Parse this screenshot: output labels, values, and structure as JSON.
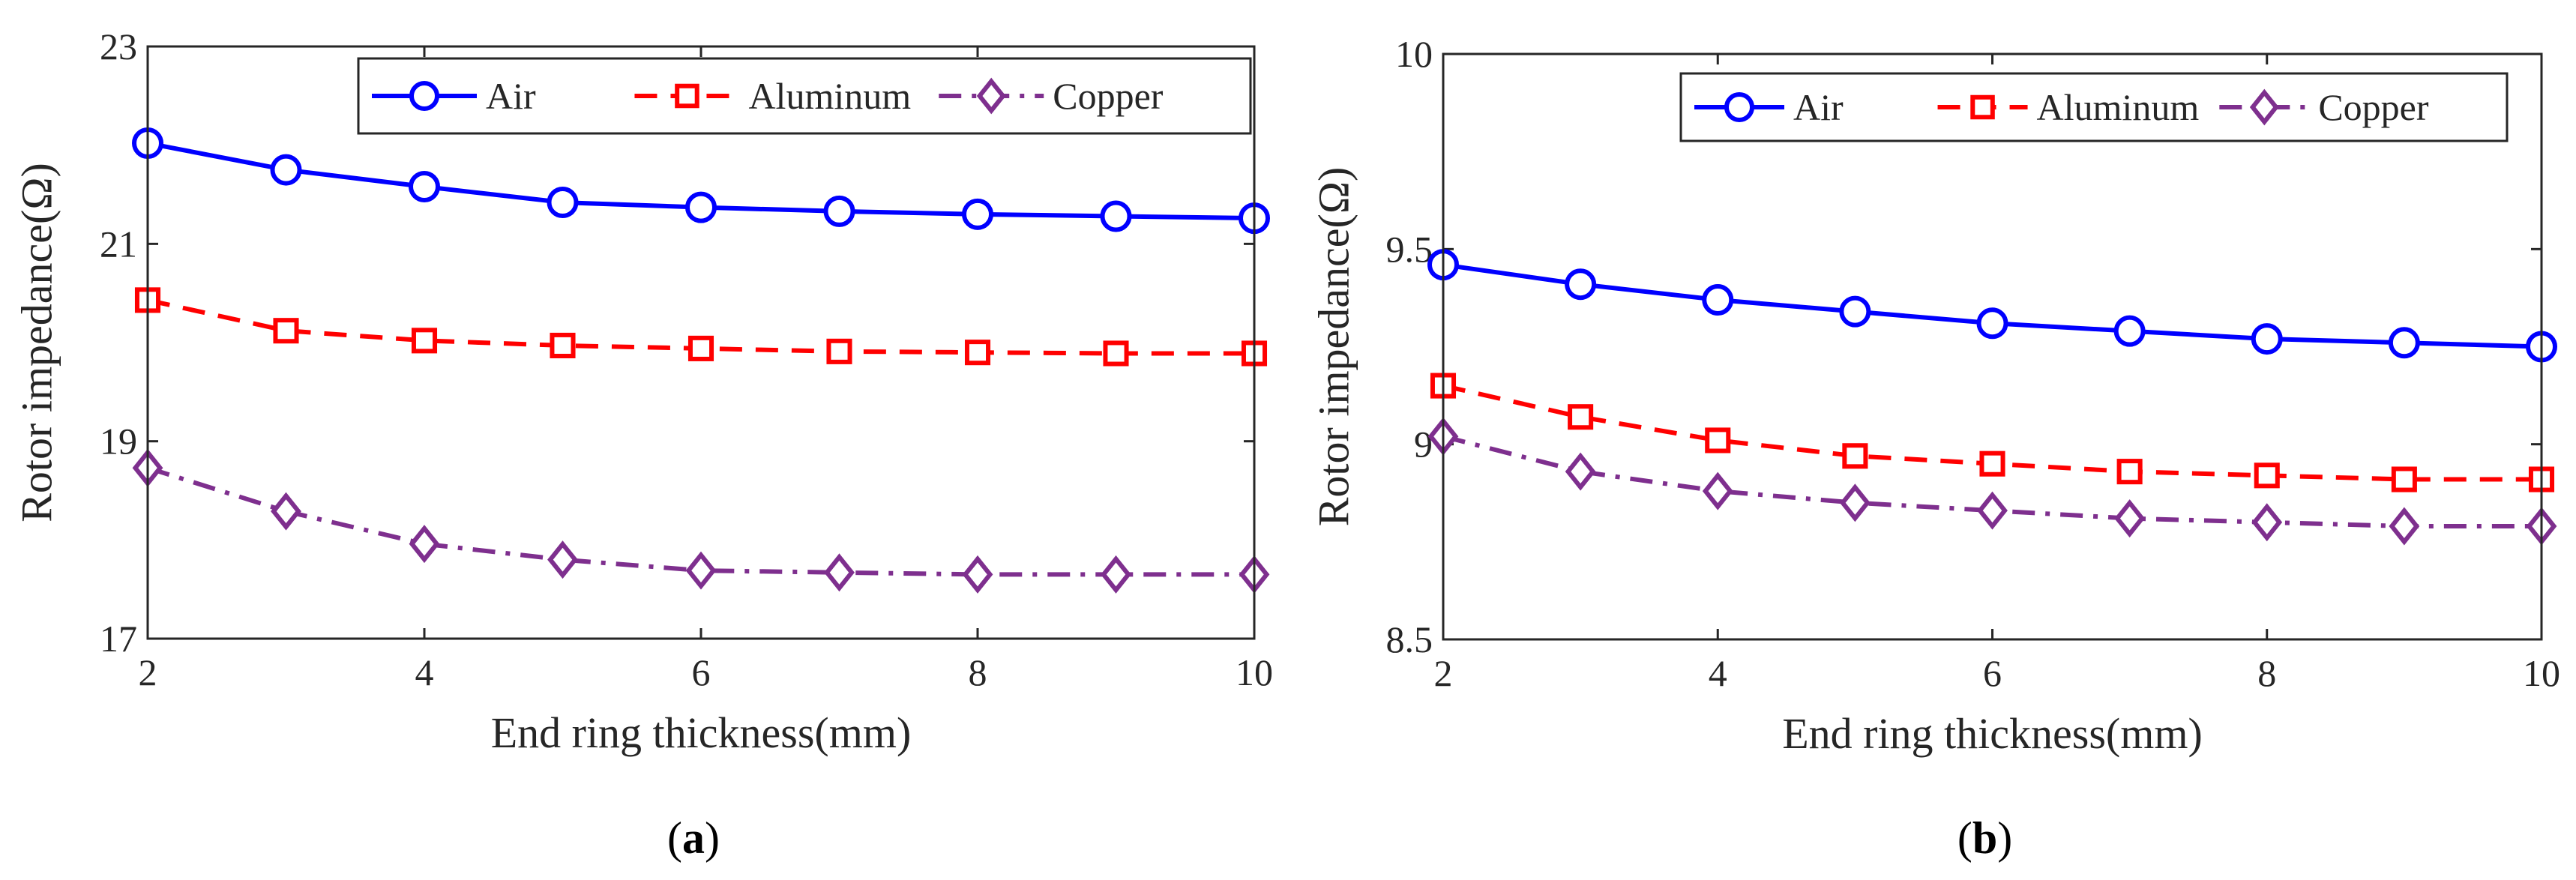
{
  "chart_data": [
    {
      "type": "line",
      "panel_label": "a",
      "xlabel": "End ring thickness(mm)",
      "ylabel": "Rotor impedance(Ω)",
      "xlim": [
        2,
        10
      ],
      "ylim": [
        17,
        23
      ],
      "xticks": [
        2,
        4,
        6,
        8,
        10
      ],
      "yticks": [
        17,
        19,
        21,
        23
      ],
      "x": [
        2,
        3,
        4,
        5,
        6,
        7,
        8,
        9,
        10
      ],
      "legend_position": "top-right",
      "legend_orientation": "horizontal",
      "series": [
        {
          "name": "Air",
          "color": "#0000ff",
          "style": "solid",
          "marker": "circle",
          "values": [
            22.02,
            21.75,
            21.58,
            21.42,
            21.37,
            21.33,
            21.3,
            21.28,
            21.26
          ]
        },
        {
          "name": "Aluminum",
          "color": "#ff0000",
          "style": "dashed",
          "marker": "square",
          "values": [
            20.43,
            20.12,
            20.02,
            19.97,
            19.94,
            19.91,
            19.9,
            19.89,
            19.89
          ]
        },
        {
          "name": "Copper",
          "color": "#7e2f8e",
          "style": "dashdot",
          "marker": "diamond",
          "values": [
            18.73,
            18.29,
            17.96,
            17.8,
            17.69,
            17.67,
            17.65,
            17.65,
            17.65
          ]
        }
      ]
    },
    {
      "type": "line",
      "panel_label": "b",
      "xlabel": "End ring thickness(mm)",
      "ylabel": "Rotor impedance(Ω)",
      "xlim": [
        2,
        10
      ],
      "ylim": [
        8.5,
        10
      ],
      "xticks": [
        2,
        4,
        6,
        8,
        10
      ],
      "yticks": [
        8.5,
        9,
        9.5,
        10
      ],
      "x": [
        2,
        3,
        4,
        5,
        6,
        7,
        8,
        9,
        10
      ],
      "legend_position": "top-right",
      "legend_orientation": "horizontal",
      "series": [
        {
          "name": "Air",
          "color": "#0000ff",
          "style": "solid",
          "marker": "circle",
          "values": [
            9.46,
            9.41,
            9.37,
            9.34,
            9.31,
            9.29,
            9.27,
            9.26,
            9.25
          ]
        },
        {
          "name": "Aluminum",
          "color": "#ff0000",
          "style": "dashed",
          "marker": "square",
          "values": [
            9.15,
            9.07,
            9.01,
            8.97,
            8.95,
            8.93,
            8.92,
            8.91,
            8.91
          ]
        },
        {
          "name": "Copper",
          "color": "#7e2f8e",
          "style": "dashdot",
          "marker": "diamond",
          "values": [
            9.02,
            8.93,
            8.88,
            8.85,
            8.83,
            8.81,
            8.8,
            8.79,
            8.79
          ]
        }
      ]
    }
  ]
}
